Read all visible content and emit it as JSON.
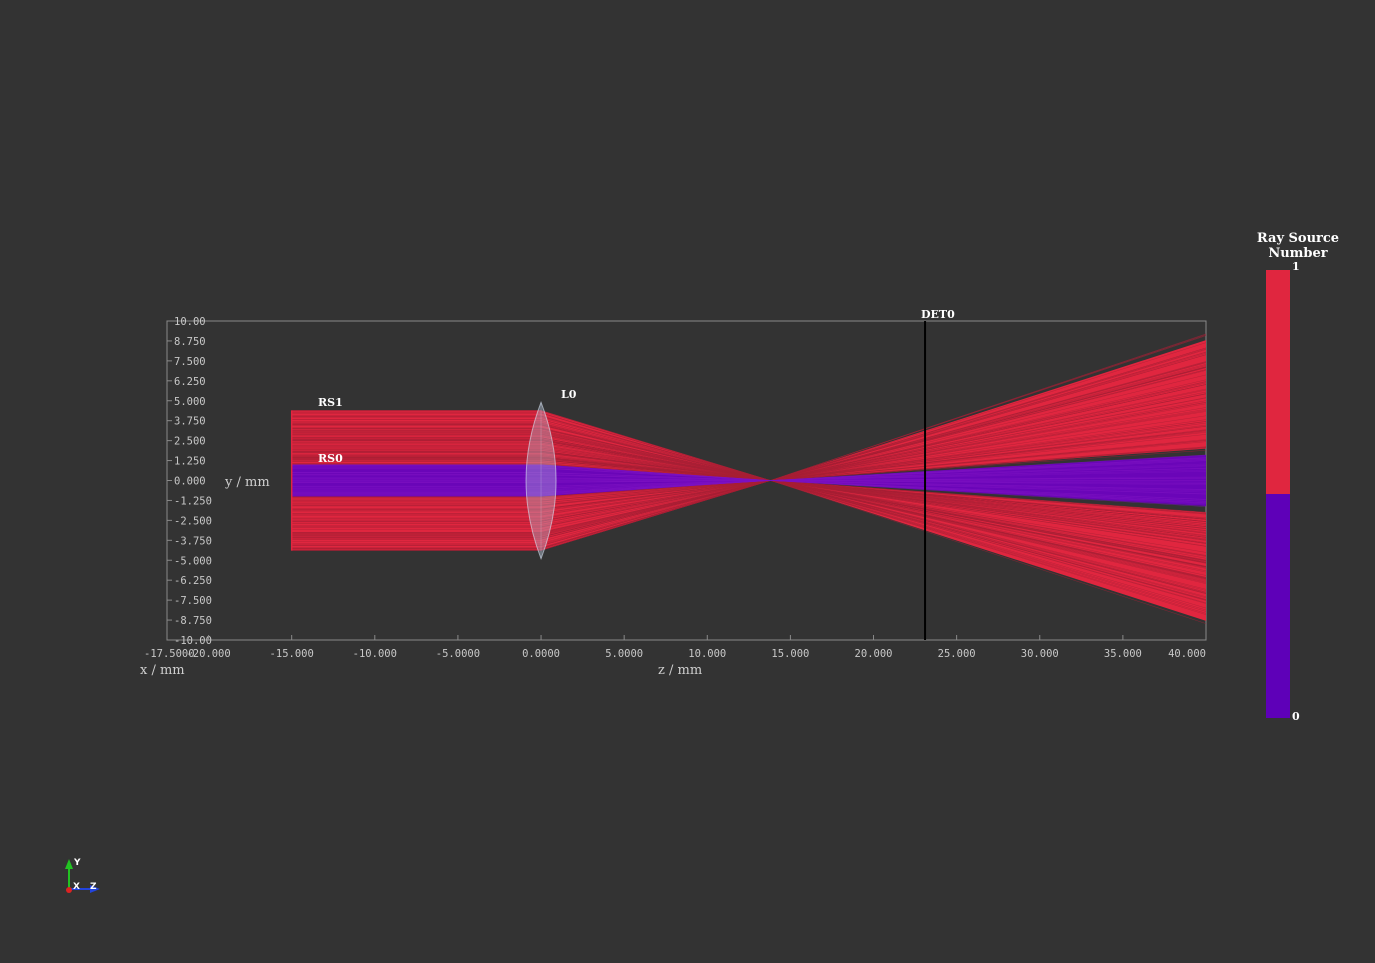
{
  "axes": {
    "y_title": "y / mm",
    "z_title": "z / mm",
    "x_title": "x / mm",
    "x_axis_overlap_label": "-17.5000",
    "y_ticks": [
      "10.00",
      "8.750",
      "7.500",
      "6.250",
      "5.000",
      "3.750",
      "2.500",
      "1.250",
      "0.000",
      "-1.250",
      "-2.500",
      "-3.750",
      "-5.000",
      "-6.250",
      "-7.500",
      "-8.750",
      "-10.00"
    ],
    "z_ticks": [
      "-20.000",
      "-15.000",
      "-10.000",
      "-5.0000",
      "0.0000",
      "5.0000",
      "10.000",
      "15.000",
      "20.000",
      "25.000",
      "30.000",
      "35.000",
      "40.000"
    ],
    "y_range": [
      -10,
      10
    ],
    "z_range": [
      -22.5,
      40
    ]
  },
  "elements": {
    "rs1": "RS1",
    "rs0": "RS0",
    "l0": "L0",
    "det0": "DET0"
  },
  "geometry_mm": {
    "source_z": -15,
    "rs1_half_height": 4.4,
    "rs0_half_height": 1.0,
    "lens_z": 0,
    "lens_half_height": 4.9,
    "focus_z": 13.8,
    "detector_z": 23.1,
    "rs1_spread_at_40": 8.8,
    "rs0_spread_at_40": 1.6
  },
  "colorbar": {
    "title_line1": "Ray Source",
    "title_line2": "Number",
    "max_label": "1",
    "min_label": "0",
    "colors": {
      "high": "#e0263f",
      "low": "#5e00b8"
    }
  },
  "colors": {
    "background": "#333333",
    "ray_rs1": "#e0263f",
    "ray_rs1_line": "#a61f34",
    "ray_rs0": "#6a05b8",
    "ray_rs0_line": "#7d12c2",
    "frame": "#8a8a8a",
    "lens": "#b8c8e0",
    "detector": "#000000"
  },
  "orientation": {
    "y_label": "Y",
    "x_label": "X",
    "z_label": "Z"
  }
}
